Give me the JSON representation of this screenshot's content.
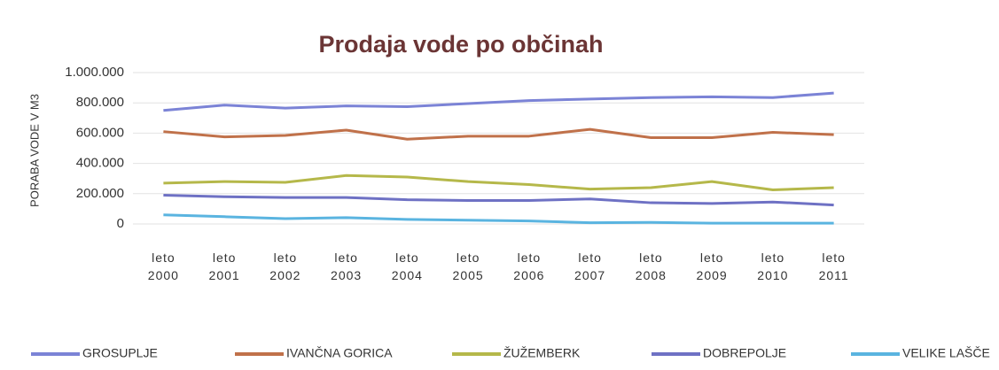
{
  "chart_data": {
    "type": "line",
    "title": "Prodaja vode po občinah",
    "y_label": "PORABA VODE V M3",
    "categories": [
      "leto 2000",
      "leto 2001",
      "leto 2002",
      "leto 2003",
      "leto 2004",
      "leto 2005",
      "leto 2006",
      "leto 2007",
      "leto 2008",
      "leto 2009",
      "leto 2010",
      "leto 2011"
    ],
    "series": [
      {
        "name": "GROSUPLJE",
        "color": "#7b83d6",
        "values": [
          750000,
          785000,
          765000,
          780000,
          775000,
          795000,
          815000,
          825000,
          835000,
          840000,
          835000,
          865000
        ]
      },
      {
        "name": "IVANČNA GORICA",
        "color": "#c0714a",
        "values": [
          610000,
          575000,
          585000,
          620000,
          560000,
          580000,
          580000,
          625000,
          570000,
          570000,
          605000,
          590000
        ]
      },
      {
        "name": "ŽUŽEMBERK",
        "color": "#b5b84a",
        "values": [
          270000,
          280000,
          275000,
          320000,
          310000,
          280000,
          260000,
          230000,
          240000,
          280000,
          225000,
          240000
        ]
      },
      {
        "name": "DOBREPOLJE",
        "color": "#6e71c4",
        "values": [
          190000,
          180000,
          175000,
          175000,
          160000,
          155000,
          155000,
          165000,
          140000,
          135000,
          145000,
          125000
        ]
      },
      {
        "name": "VELIKE LAŠČE",
        "color": "#5ab4e0",
        "values": [
          60000,
          48000,
          35000,
          42000,
          30000,
          25000,
          20000,
          8000,
          10000,
          5000,
          5000,
          5000
        ]
      }
    ],
    "ylim": [
      0,
      1000000
    ],
    "yticks": [
      0,
      {
        "value": 200000,
        "label": "200.000"
      },
      {
        "value": 400000,
        "label": "400.000"
      },
      {
        "value": 600000,
        "label": "600.000"
      },
      {
        "value": 800000,
        "label": "800.000"
      },
      {
        "value": 1000000,
        "label": "1.000.000"
      }
    ],
    "grid": true
  }
}
